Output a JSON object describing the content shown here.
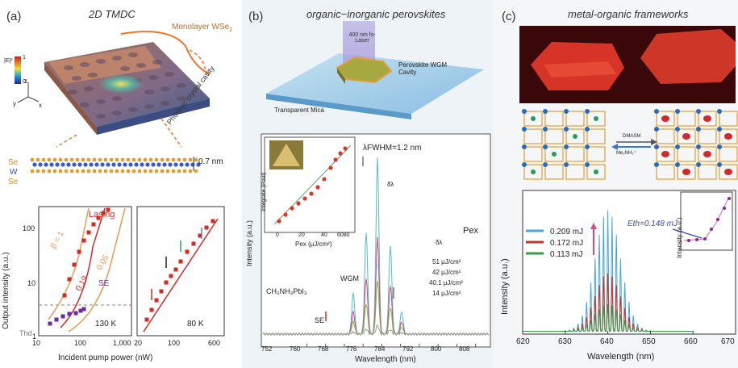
{
  "panels": {
    "a": {
      "label": "(a)",
      "title": "2D TMDC",
      "schematic": {
        "monolayer": "Monolayer WSe",
        "monolayer_sub": "2",
        "cavity": "Photonic crystal cavity",
        "colorbar_high": "1",
        "colorbar_low": "0",
        "colorbar_label": "|E|²",
        "axes": [
          "z",
          "y",
          "x"
        ]
      },
      "lattice": {
        "layers": [
          "Se",
          "W",
          "Se"
        ],
        "thickness": "0.7 nm"
      },
      "chart_left": {
        "xlabel": "Incident pump power (nW)",
        "ylabel": "Output intensity (a.u.)",
        "temp": "130 K",
        "lasing": "Lasing",
        "se": "SE",
        "thd": "Thd",
        "beta_labels": [
          "β = 1",
          "0.19",
          "0.05"
        ],
        "x_ticks": [
          "10",
          "100",
          "1,000"
        ],
        "y_ticks": [
          "100",
          "10",
          "1"
        ]
      },
      "chart_right": {
        "temp": "80 K",
        "x_ticks": [
          "20",
          "100",
          "600"
        ]
      }
    },
    "b": {
      "label": "(b)",
      "title": "organic−inorganic perovskites",
      "schematic": {
        "laser": "400 nm fs-Laser",
        "cavity": "Perovskite WGM Cavity",
        "mica": "Transparent Mica"
      },
      "chart": {
        "xlabel": "Wavelength (nm)",
        "ylabel": "Intensity (a.u.)",
        "fwhm": "λFWHM=1.2 nm",
        "material": "CH₃NH₃PbI₃",
        "wgm": "WGM",
        "se": "SE",
        "pex": "Pex",
        "dl1": "δλ",
        "dl2": "δλ",
        "legend": [
          "51 μJ/cm²",
          "42 μJ/cm²",
          "40.1 μJ/cm²",
          "14 μJ/cm²"
        ],
        "x_ticks": [
          "752",
          "760",
          "768",
          "776",
          "784",
          "792",
          "800",
          "808"
        ],
        "inset_ylabel": "Integrate (Pout)",
        "inset_xlabel": "Pex (μJ/cm²)",
        "inset_ticks": [
          "0",
          "20",
          "40",
          "6080"
        ]
      }
    },
    "c": {
      "label": "(c)",
      "title": "metal-organic frameworks",
      "scheme": {
        "reagent": "DMASM",
        "product": "Me₂NH₂⁺"
      },
      "chart": {
        "xlabel": "Wavelength (nm)",
        "ylabel": "Intensity (a.u.)",
        "legend": [
          "0.209 mJ",
          "0.172 mJ",
          "0.113 mJ"
        ],
        "x_ticks": [
          "620",
          "630",
          "640",
          "650",
          "660",
          "670"
        ],
        "inset_ylabel": "Intensity (a.u.)",
        "eth": "Eth=0.148 mJ"
      }
    }
  },
  "colors": {
    "lasing_red": "#d42a24",
    "beta_orange": "#e69b54",
    "se_purple": "#6a2ba0",
    "c_blue": "#4aa3d9",
    "c_red": "#c0392b",
    "c_green": "#3a9a4a",
    "b_cyan": "#4fc0c0",
    "b_magenta": "#d04a8a",
    "b_green": "#8ab04a"
  }
}
